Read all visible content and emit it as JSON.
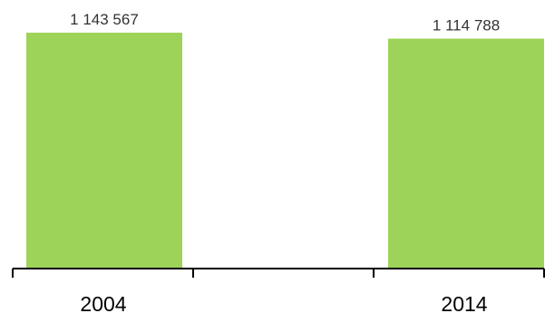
{
  "chart_data": {
    "type": "bar",
    "categories": [
      "2004",
      "2014"
    ],
    "values": [
      1143567,
      1114788
    ],
    "value_labels": [
      "1 143 567",
      "1 114 788"
    ],
    "ylim": [
      0,
      1143567
    ],
    "grid": false,
    "bar_color": "#9ed35a",
    "axis_color": "#000000"
  }
}
